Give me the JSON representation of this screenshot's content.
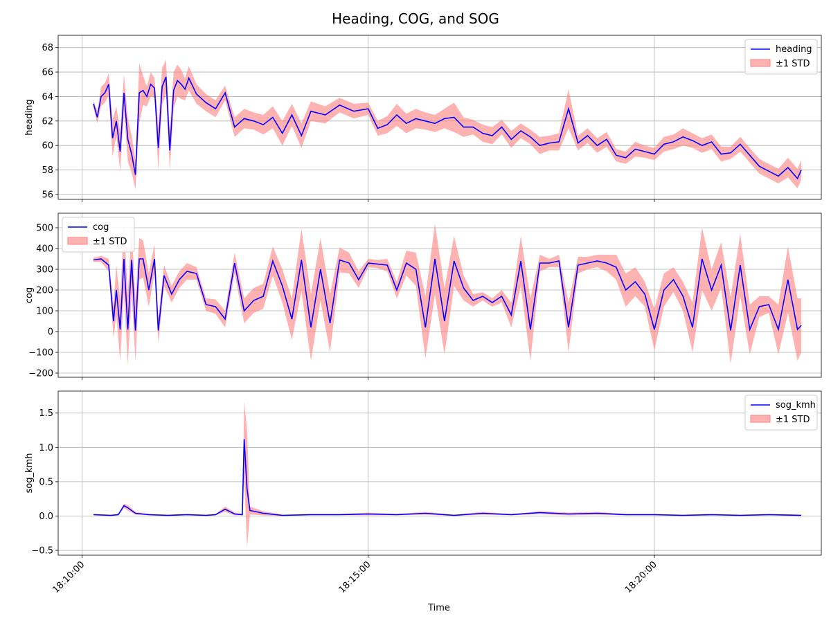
{
  "figure": {
    "title": "Heading, COG, and SOG",
    "xlabel": "Time"
  },
  "chart_data": [
    {
      "type": "line",
      "ylabel": "heading",
      "ylim": [
        55.6,
        69.0
      ],
      "yticks": [
        56,
        58,
        60,
        62,
        64,
        66,
        68
      ],
      "xticks": [
        "18:10:00",
        "18:15:00",
        "18:20:00"
      ],
      "xlim": [
        "18:09:35",
        "18:22:55"
      ],
      "grid": true,
      "legend_position": "top-right",
      "series": [
        {
          "name": "heading",
          "color": "#0000ff"
        },
        {
          "name": "±1 STD",
          "color": "#ff7f7f",
          "type": "band"
        }
      ],
      "x": [
        "18:10:12",
        "18:10:16",
        "18:10:20",
        "18:10:24",
        "18:10:28",
        "18:10:32",
        "18:10:36",
        "18:10:40",
        "18:10:44",
        "18:10:48",
        "18:10:52",
        "18:10:56",
        "18:11:00",
        "18:11:04",
        "18:11:08",
        "18:11:12",
        "18:11:16",
        "18:11:20",
        "18:11:24",
        "18:11:28",
        "18:11:32",
        "18:11:36",
        "18:11:40",
        "18:11:44",
        "18:11:48",
        "18:11:52",
        "18:12:00",
        "18:12:10",
        "18:12:20",
        "18:12:30",
        "18:12:40",
        "18:12:50",
        "18:13:00",
        "18:13:10",
        "18:13:20",
        "18:13:30",
        "18:13:40",
        "18:13:50",
        "18:14:00",
        "18:14:15",
        "18:14:30",
        "18:14:45",
        "18:15:00",
        "18:15:10",
        "18:15:20",
        "18:15:30",
        "18:15:40",
        "18:15:50",
        "18:16:00",
        "18:16:10",
        "18:16:20",
        "18:16:30",
        "18:16:40",
        "18:16:50",
        "18:17:00",
        "18:17:10",
        "18:17:20",
        "18:17:30",
        "18:17:40",
        "18:17:50",
        "18:18:00",
        "18:18:10",
        "18:18:20",
        "18:18:30",
        "18:18:40",
        "18:18:50",
        "18:19:00",
        "18:19:10",
        "18:19:20",
        "18:19:30",
        "18:19:40",
        "18:19:50",
        "18:20:00",
        "18:20:10",
        "18:20:20",
        "18:20:30",
        "18:20:40",
        "18:20:50",
        "18:21:00",
        "18:21:10",
        "18:21:20",
        "18:21:30",
        "18:21:40",
        "18:21:50",
        "18:22:00",
        "18:22:10",
        "18:22:20",
        "18:22:30",
        "18:22:34"
      ],
      "values": [
        63.4,
        62.3,
        64.0,
        64.3,
        65.0,
        60.6,
        62.0,
        59.5,
        64.3,
        60.5,
        59.3,
        57.6,
        64.3,
        64.5,
        64.0,
        65.0,
        64.7,
        59.8,
        64.8,
        65.6,
        59.6,
        64.5,
        65.3,
        65.0,
        64.6,
        65.5,
        64.2,
        63.5,
        63.0,
        64.3,
        61.5,
        62.2,
        62.0,
        61.7,
        62.3,
        61.0,
        62.5,
        60.8,
        62.8,
        62.5,
        63.3,
        62.8,
        63.0,
        61.4,
        61.7,
        62.5,
        61.8,
        62.2,
        62.0,
        61.8,
        62.2,
        62.3,
        61.5,
        61.5,
        61.0,
        60.8,
        61.5,
        60.5,
        61.2,
        60.7,
        60.0,
        60.2,
        60.3,
        63.0,
        60.2,
        60.8,
        60.0,
        60.5,
        59.2,
        59.0,
        59.7,
        59.5,
        59.3,
        60.1,
        60.3,
        60.7,
        60.4,
        60.0,
        60.3,
        59.3,
        59.4,
        60.1,
        59.2,
        58.3,
        57.9,
        57.5,
        58.2,
        57.3,
        58.0
      ],
      "std": [
        0.3,
        0.5,
        0.8,
        0.8,
        0.9,
        1.5,
        1.2,
        1.6,
        1.5,
        1.8,
        1.5,
        1.2,
        2.4,
        1.2,
        0.8,
        1.0,
        0.8,
        1.8,
        1.5,
        1.4,
        1.6,
        1.5,
        1.3,
        1.2,
        0.9,
        1.0,
        0.8,
        0.7,
        0.7,
        0.6,
        0.8,
        0.8,
        0.7,
        0.8,
        0.9,
        1.0,
        0.9,
        1.0,
        0.8,
        0.7,
        0.6,
        0.6,
        0.5,
        0.6,
        0.7,
        0.9,
        0.8,
        0.8,
        0.7,
        0.7,
        0.8,
        1.2,
        0.8,
        0.6,
        0.7,
        0.7,
        0.6,
        0.7,
        0.6,
        0.6,
        0.7,
        0.6,
        0.7,
        1.6,
        0.6,
        0.6,
        0.6,
        0.6,
        0.5,
        0.5,
        0.6,
        0.5,
        0.5,
        0.6,
        0.6,
        0.7,
        0.6,
        0.6,
        0.6,
        0.6,
        0.5,
        0.6,
        0.6,
        0.6,
        0.6,
        0.6,
        0.8,
        0.8,
        0.8
      ]
    },
    {
      "type": "line",
      "ylabel": "cog",
      "ylim": [
        -220,
        570
      ],
      "yticks": [
        -200,
        -100,
        0,
        100,
        200,
        300,
        400,
        500
      ],
      "xticks": [
        "18:10:00",
        "18:15:00",
        "18:20:00"
      ],
      "xlim": [
        "18:09:35",
        "18:22:55"
      ],
      "grid": true,
      "legend_position": "top-left",
      "series": [
        {
          "name": "cog",
          "color": "#0000ff"
        },
        {
          "name": "±1 STD",
          "color": "#ff7f7f",
          "type": "band"
        }
      ],
      "x": [
        "18:10:12",
        "18:10:20",
        "18:10:28",
        "18:10:33",
        "18:10:36",
        "18:10:40",
        "18:10:44",
        "18:10:48",
        "18:10:52",
        "18:10:56",
        "18:11:00",
        "18:11:04",
        "18:11:10",
        "18:11:16",
        "18:11:20",
        "18:11:26",
        "18:11:34",
        "18:11:42",
        "18:11:50",
        "18:12:00",
        "18:12:10",
        "18:12:20",
        "18:12:30",
        "18:12:40",
        "18:12:50",
        "18:13:00",
        "18:13:10",
        "18:13:20",
        "18:13:30",
        "18:13:40",
        "18:13:50",
        "18:14:00",
        "18:14:10",
        "18:14:20",
        "18:14:30",
        "18:14:40",
        "18:14:50",
        "18:15:00",
        "18:15:10",
        "18:15:20",
        "18:15:30",
        "18:15:40",
        "18:15:50",
        "18:16:00",
        "18:16:10",
        "18:16:20",
        "18:16:30",
        "18:16:40",
        "18:16:50",
        "18:17:00",
        "18:17:10",
        "18:17:20",
        "18:17:30",
        "18:17:40",
        "18:17:50",
        "18:18:00",
        "18:18:10",
        "18:18:20",
        "18:18:30",
        "18:18:40",
        "18:18:50",
        "18:19:00",
        "18:19:10",
        "18:19:20",
        "18:19:30",
        "18:19:40",
        "18:19:50",
        "18:20:00",
        "18:20:10",
        "18:20:20",
        "18:20:30",
        "18:20:40",
        "18:20:50",
        "18:21:00",
        "18:21:10",
        "18:21:20",
        "18:21:30",
        "18:21:40",
        "18:21:50",
        "18:22:00",
        "18:22:10",
        "18:22:20",
        "18:22:30",
        "18:22:34"
      ],
      "values": [
        345,
        350,
        320,
        50,
        200,
        10,
        350,
        10,
        345,
        5,
        350,
        350,
        200,
        350,
        5,
        270,
        180,
        250,
        290,
        280,
        130,
        120,
        60,
        330,
        100,
        150,
        170,
        340,
        220,
        60,
        345,
        20,
        300,
        40,
        345,
        330,
        250,
        330,
        325,
        320,
        200,
        330,
        300,
        20,
        350,
        50,
        340,
        210,
        150,
        170,
        140,
        170,
        80,
        340,
        10,
        330,
        330,
        340,
        20,
        320,
        330,
        340,
        330,
        310,
        200,
        240,
        180,
        10,
        200,
        250,
        170,
        20,
        350,
        200,
        320,
        5,
        320,
        10,
        120,
        130,
        10,
        250,
        10,
        30
      ],
      "std": [
        10,
        15,
        30,
        80,
        120,
        150,
        160,
        170,
        160,
        150,
        100,
        90,
        80,
        70,
        60,
        50,
        40,
        40,
        40,
        30,
        30,
        35,
        40,
        50,
        60,
        60,
        60,
        70,
        80,
        100,
        150,
        160,
        150,
        140,
        60,
        50,
        40,
        20,
        20,
        30,
        40,
        60,
        80,
        150,
        170,
        160,
        120,
        60,
        30,
        20,
        20,
        30,
        60,
        120,
        150,
        40,
        20,
        30,
        120,
        40,
        30,
        30,
        40,
        60,
        80,
        70,
        60,
        100,
        80,
        60,
        70,
        120,
        150,
        100,
        110,
        160,
        150,
        120,
        50,
        40,
        120,
        160,
        150,
        130
      ]
    },
    {
      "type": "line",
      "ylabel": "sog_kmh",
      "ylim": [
        -0.57,
        1.82
      ],
      "yticks": [
        -0.5,
        0.0,
        0.5,
        1.0,
        1.5
      ],
      "xticks": [
        "18:10:00",
        "18:15:00",
        "18:20:00"
      ],
      "xlim": [
        "18:09:35",
        "18:22:55"
      ],
      "grid": true,
      "legend_position": "top-right",
      "series": [
        {
          "name": "sog_kmh",
          "color": "#0000ff"
        },
        {
          "name": "±1 STD",
          "color": "#ff7f7f",
          "type": "band"
        }
      ],
      "x": [
        "18:10:12",
        "18:10:30",
        "18:10:38",
        "18:10:44",
        "18:10:48",
        "18:10:56",
        "18:11:10",
        "18:11:30",
        "18:11:50",
        "18:12:10",
        "18:12:20",
        "18:12:30",
        "18:12:40",
        "18:12:48",
        "18:12:50",
        "18:12:53",
        "18:12:56",
        "18:13:00",
        "18:13:10",
        "18:13:30",
        "18:14:00",
        "18:14:30",
        "18:15:00",
        "18:15:30",
        "18:16:00",
        "18:16:30",
        "18:17:00",
        "18:17:30",
        "18:18:00",
        "18:18:30",
        "18:19:00",
        "18:19:30",
        "18:20:00",
        "18:20:30",
        "18:21:00",
        "18:21:30",
        "18:22:00",
        "18:22:34"
      ],
      "values": [
        0.02,
        0.01,
        0.02,
        0.15,
        0.12,
        0.04,
        0.02,
        0.01,
        0.02,
        0.01,
        0.02,
        0.1,
        0.03,
        0.02,
        1.12,
        0.4,
        0.08,
        0.07,
        0.04,
        0.01,
        0.02,
        0.02,
        0.03,
        0.02,
        0.04,
        0.01,
        0.04,
        0.02,
        0.05,
        0.03,
        0.04,
        0.02,
        0.02,
        0.01,
        0.02,
        0.01,
        0.02,
        0.01
      ],
      "std": [
        0.01,
        0.01,
        0.01,
        0.03,
        0.04,
        0.02,
        0.01,
        0.01,
        0.01,
        0.01,
        0.01,
        0.04,
        0.02,
        0.01,
        0.55,
        0.85,
        0.06,
        0.05,
        0.03,
        0.01,
        0.01,
        0.01,
        0.02,
        0.01,
        0.02,
        0.01,
        0.02,
        0.01,
        0.02,
        0.02,
        0.02,
        0.01,
        0.01,
        0.01,
        0.01,
        0.01,
        0.01,
        0.01
      ]
    }
  ]
}
